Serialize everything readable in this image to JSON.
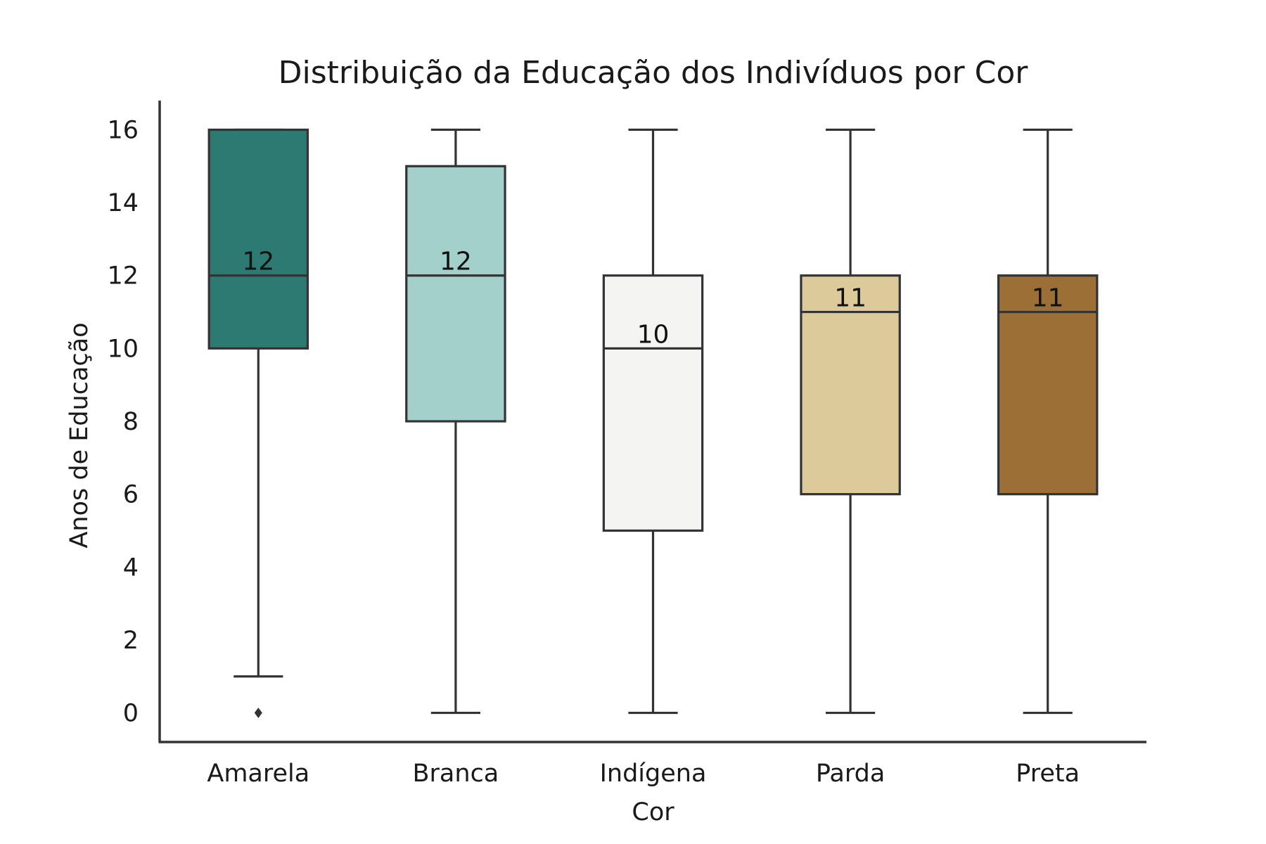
{
  "chart_data": {
    "type": "box",
    "title": "Distribuição da Educação dos Indivíduos por Cor",
    "xlabel": "Cor",
    "ylabel": "Anos de Educação",
    "categories": [
      "Amarela",
      "Branca",
      "Indígena",
      "Parda",
      "Preta"
    ],
    "y_ticks": [
      "0",
      "2",
      "4",
      "6",
      "8",
      "10",
      "12",
      "14",
      "16"
    ],
    "ylim": [
      -0.8,
      16.8
    ],
    "grid": false,
    "boxes": [
      {
        "category": "Amarela",
        "whisker_low": 1,
        "q1": 10,
        "median": 12,
        "q3": 16,
        "whisker_high": 16,
        "outliers": [
          0
        ],
        "median_label": "12",
        "color": "#2d7a72"
      },
      {
        "category": "Branca",
        "whisker_low": 0,
        "q1": 8,
        "median": 12,
        "q3": 15,
        "whisker_high": 16,
        "outliers": [],
        "median_label": "12",
        "color": "#a3d0ca"
      },
      {
        "category": "Indígena",
        "whisker_low": 0,
        "q1": 5,
        "median": 10,
        "q3": 12,
        "whisker_high": 16,
        "outliers": [],
        "median_label": "10",
        "color": "#f4f4f2"
      },
      {
        "category": "Parda",
        "whisker_low": 0,
        "q1": 6,
        "median": 11,
        "q3": 12,
        "whisker_high": 16,
        "outliers": [],
        "median_label": "11",
        "color": "#ddca9b"
      },
      {
        "category": "Preta",
        "whisker_low": 0,
        "q1": 6,
        "median": 11,
        "q3": 12,
        "whisker_high": 16,
        "outliers": [],
        "median_label": "11",
        "color": "#9b6f35"
      }
    ],
    "line_color": "#333333"
  }
}
